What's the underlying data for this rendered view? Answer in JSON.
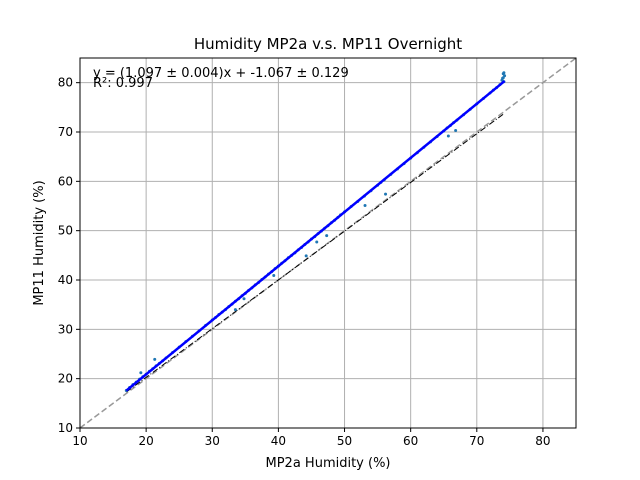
{
  "chart_data": {
    "type": "scatter",
    "title": "Humidity MP2a v.s. MP11 Overnight",
    "xlabel": "MP2a Humidity (%)",
    "ylabel": "MP11 Humidity (%)",
    "xlim": [
      10,
      85
    ],
    "ylim": [
      10,
      85
    ],
    "xticks": [
      "10",
      "20",
      "30",
      "40",
      "50",
      "60",
      "70",
      "80"
    ],
    "yticks": [
      "10",
      "20",
      "30",
      "40",
      "50",
      "60",
      "70",
      "80"
    ],
    "grid": true,
    "annotations": {
      "fit_equation": "y = (1.097 ± 0.004)x + -1.067 ± 0.129",
      "r_squared": "R²: 0.997"
    },
    "fit": {
      "slope": 1.097,
      "intercept": -1.067,
      "x_range": [
        17,
        74.2
      ],
      "color": "#0000ff"
    },
    "identity_line": {
      "x_range": [
        10,
        85
      ],
      "color": "#999999"
    },
    "reference_line": {
      "x": [
        17,
        74
      ],
      "y": [
        17.3,
        73.6
      ],
      "color": "#000000"
    },
    "points": {
      "color": "#1f77b4",
      "x": [
        17,
        17.5,
        18,
        18.5,
        19,
        19.5,
        20,
        20.5,
        21,
        21.5,
        22,
        22.5,
        23,
        24,
        25,
        26,
        27,
        28,
        29,
        30,
        30.5,
        31,
        31.5,
        32,
        32.5,
        33,
        33.5,
        34,
        34.5,
        35,
        35.5,
        36,
        36.5,
        37,
        37.5,
        38,
        38.5,
        39,
        39.5,
        40,
        40.5,
        41,
        41.5,
        42,
        42.5,
        43,
        43.5,
        44,
        44.5,
        45,
        45.5,
        46,
        46.5,
        47,
        47.5,
        48,
        48.5,
        49,
        50,
        51,
        52,
        53,
        54,
        55,
        55.5,
        56,
        57,
        58,
        59,
        60,
        61,
        62,
        63,
        64,
        65,
        65.5,
        66,
        66.5,
        67,
        68,
        69,
        70,
        71,
        72,
        72.5,
        73,
        73.5,
        73.8,
        74,
        74,
        74.1,
        74.2,
        19.2,
        21.3,
        33.5,
        34.8,
        39.3,
        44.2,
        45.8,
        47.3,
        49.4,
        53.1,
        56.2,
        65.7,
        66.8,
        73.9,
        74.1
      ],
      "y": [
        17.6,
        18.2,
        18.8,
        19.3,
        19.9,
        20.4,
        20.9,
        21.5,
        22.0,
        22.6,
        23.1,
        23.6,
        24.2,
        25.3,
        26.4,
        27.5,
        28.6,
        29.7,
        30.8,
        31.9,
        32.4,
        33.0,
        33.5,
        34.0,
        34.6,
        35.1,
        35.7,
        36.2,
        36.8,
        37.3,
        37.9,
        38.4,
        39.0,
        39.5,
        40.1,
        40.6,
        41.2,
        41.7,
        42.3,
        42.8,
        43.4,
        43.9,
        44.5,
        45.0,
        45.5,
        46.1,
        46.6,
        47.2,
        47.7,
        48.3,
        48.8,
        49.4,
        49.9,
        50.5,
        51.0,
        51.6,
        52.1,
        52.7,
        53.8,
        54.9,
        55.9,
        57.0,
        58.1,
        59.2,
        59.8,
        60.3,
        61.4,
        62.5,
        63.6,
        64.7,
        65.8,
        66.9,
        68.0,
        69.1,
        70.2,
        70.8,
        71.3,
        71.9,
        72.4,
        73.5,
        74.6,
        75.7,
        76.8,
        77.9,
        78.5,
        79.0,
        79.6,
        80.5,
        81.0,
        81.8,
        80.2,
        81.4,
        21.2,
        23.9,
        34.0,
        36.2,
        40.9,
        44.9,
        47.7,
        49.0,
        53.2,
        55.1,
        57.4,
        69.2,
        70.3,
        80.9,
        82.0
      ]
    }
  }
}
